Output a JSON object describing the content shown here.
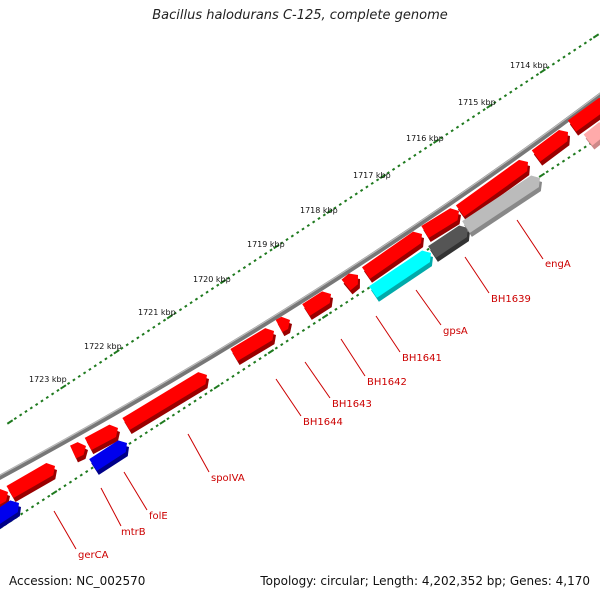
{
  "title": "Bacillus halodurans C-125, complete genome",
  "footer": {
    "accession": "Accession: NC_002570",
    "summary": "Topology: circular; Length: 4,202,352 bp; Genes: 4,170"
  },
  "colors": {
    "backbone": "#777777",
    "tick": "#1f7a1f",
    "gene_fwd": "#ff0000",
    "gene_label": "#cc0000",
    "highlight_cyan": "#00ffff",
    "highlight_blue": "#0000ee",
    "gray_dark": "#555555",
    "gray_light": "#bbbbbb"
  },
  "kbp_ticks": [
    "1714 kbp",
    "1715 kbp",
    "1716 kbp",
    "1717 kbp",
    "1718 kbp",
    "1719 kbp",
    "1720 kbp",
    "1721 kbp",
    "1722 kbp",
    "1723 kbp"
  ],
  "gene_labels": [
    "engA",
    "BH1639",
    "gpsA",
    "BH1641",
    "BH1642",
    "BH1643",
    "BH1644",
    "spoIVA",
    "folE",
    "mtrB",
    "gerCA"
  ]
}
